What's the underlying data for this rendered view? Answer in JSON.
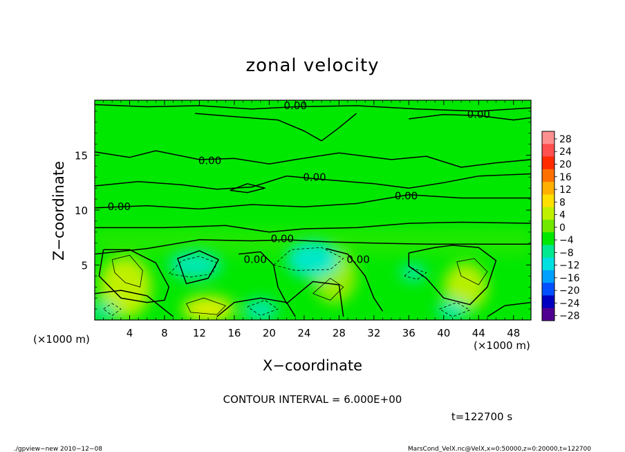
{
  "chart_data": {
    "type": "heatmap",
    "title": "zonal velocity",
    "xlabel": "X−coordinate",
    "ylabel": "Z−coordinate",
    "x_unit": "(×1000 m)",
    "y_unit": "(×1000 m)",
    "xlim": [
      0,
      50
    ],
    "ylim": [
      0,
      20
    ],
    "x_ticks": [
      4,
      8,
      12,
      16,
      20,
      24,
      28,
      32,
      36,
      40,
      44,
      48
    ],
    "x_tick_labels": [
      "4",
      "8",
      "12",
      "16",
      "20",
      "24",
      "28",
      "32",
      "36",
      "40",
      "44",
      "48"
    ],
    "y_ticks": [
      5,
      10,
      15
    ],
    "y_tick_labels": [
      "5",
      "10",
      "15"
    ],
    "contour_interval_label": "CONTOUR INTERVAL = 6.000E+00",
    "time_label": "t=122700 s",
    "contour_labels": [
      {
        "text": "0.00",
        "x": 23,
        "y": 19.5
      },
      {
        "text": "0.00",
        "x": 44,
        "y": 18.7
      },
      {
        "text": "0.00",
        "x": 13.2,
        "y": 14.5
      },
      {
        "text": "0.00",
        "x": 25.2,
        "y": 13.0
      },
      {
        "text": "0.00",
        "x": 35.7,
        "y": 11.3
      },
      {
        "text": "0.00",
        "x": 2.8,
        "y": 10.3
      },
      {
        "text": "0.00",
        "x": 21.5,
        "y": 7.4
      },
      {
        "text": "0.00",
        "x": 18.4,
        "y": 5.5
      },
      {
        "text": "0.00",
        "x": 30.2,
        "y": 5.5
      }
    ],
    "colorbar": {
      "levels": [
        "28",
        "24",
        "20",
        "16",
        "12",
        "8",
        "4",
        "0",
        "−4",
        "−8",
        "−12",
        "−16",
        "−20",
        "−24",
        "−28"
      ],
      "colors": [
        "#ff9090",
        "#ff5050",
        "#ff2a00",
        "#ff7000",
        "#ffb000",
        "#ffe000",
        "#bff000",
        "#70e800",
        "#00e800",
        "#00e890",
        "#00e0e0",
        "#00a0ff",
        "#0050ff",
        "#0000c0",
        "#500090"
      ]
    },
    "regions": [
      {
        "kind": "positive-blob",
        "cx": 3.5,
        "cy": 3.0,
        "rx": 3.0,
        "ry": 2.8,
        "color": "#c0f000"
      },
      {
        "kind": "positive-blob",
        "cx": 13.0,
        "cy": 1.0,
        "rx": 3.0,
        "ry": 1.2,
        "color": "#dcef00"
      },
      {
        "kind": "positive-blob",
        "cx": 42.5,
        "cy": 3.0,
        "rx": 2.5,
        "ry": 2.2,
        "color": "#b8ef00"
      },
      {
        "kind": "positive-blob",
        "cx": 27.5,
        "cy": 4.0,
        "rx": 2.5,
        "ry": 2.5,
        "color": "#99ec00"
      },
      {
        "kind": "negative-blob",
        "cx": 11.5,
        "cy": 5.0,
        "rx": 3.0,
        "ry": 1.3,
        "color": "#00e8b0"
      },
      {
        "kind": "negative-blob",
        "cx": 25.0,
        "cy": 5.5,
        "rx": 3.0,
        "ry": 1.7,
        "color": "#00e8c8"
      },
      {
        "kind": "negative-blob",
        "cx": 19.0,
        "cy": 0.9,
        "rx": 2.0,
        "ry": 1.0,
        "color": "#00e8b0"
      },
      {
        "kind": "negative-blob",
        "cx": 36.5,
        "cy": 4.3,
        "rx": 1.5,
        "ry": 0.8,
        "color": "#00e8a8"
      },
      {
        "kind": "negative-blob",
        "cx": 41.0,
        "cy": 0.9,
        "rx": 1.8,
        "ry": 0.9,
        "color": "#00e8b0"
      },
      {
        "kind": "negative-blob",
        "cx": 1.0,
        "cy": 0.8,
        "rx": 1.5,
        "ry": 0.8,
        "color": "#00e8a8"
      }
    ],
    "zero_contours": [
      [
        [
          0,
          19.6
        ],
        [
          6,
          19.4
        ],
        [
          12,
          19.5
        ],
        [
          18,
          19.2
        ],
        [
          23,
          19.4
        ],
        [
          30,
          19.5
        ],
        [
          37,
          19.2
        ],
        [
          44,
          19.0
        ],
        [
          50,
          19.3
        ]
      ],
      [
        [
          11.5,
          18.8
        ],
        [
          16,
          18.5
        ],
        [
          21,
          18.2
        ],
        [
          24,
          17.2
        ],
        [
          26,
          16.3
        ],
        [
          28,
          17.5
        ],
        [
          30,
          18.8
        ]
      ],
      [
        [
          36,
          18.3
        ],
        [
          40,
          18.7
        ],
        [
          44,
          18.6
        ],
        [
          48,
          18.2
        ],
        [
          50,
          18.4
        ]
      ],
      [
        [
          0,
          15.3
        ],
        [
          4,
          14.8
        ],
        [
          7,
          15.4
        ],
        [
          12,
          14.6
        ],
        [
          16,
          14.7
        ],
        [
          20,
          14.2
        ],
        [
          23,
          14.6
        ],
        [
          28,
          15.2
        ],
        [
          34,
          14.6
        ],
        [
          38,
          14.9
        ],
        [
          42,
          13.9
        ],
        [
          46,
          14.3
        ],
        [
          50,
          14.6
        ]
      ],
      [
        [
          0,
          12.2
        ],
        [
          5,
          12.6
        ],
        [
          10,
          12.3
        ],
        [
          14,
          11.9
        ],
        [
          18,
          12.1
        ],
        [
          22,
          13.1
        ],
        [
          26,
          12.8
        ],
        [
          32,
          12.4
        ],
        [
          36,
          12.0
        ],
        [
          40,
          12.5
        ],
        [
          44,
          13.1
        ],
        [
          50,
          13.3
        ]
      ],
      [
        [
          15.5,
          11.8
        ],
        [
          17.5,
          12.4
        ],
        [
          19.5,
          12.0
        ],
        [
          17.5,
          11.6
        ],
        [
          15.5,
          11.8
        ]
      ],
      [
        [
          0,
          10.2
        ],
        [
          6,
          10.4
        ],
        [
          12,
          10.1
        ],
        [
          18,
          10.5
        ],
        [
          24,
          10.3
        ],
        [
          30,
          10.6
        ],
        [
          36,
          11.4
        ],
        [
          42,
          11.1
        ],
        [
          50,
          11.1
        ]
      ],
      [
        [
          0,
          8.4
        ],
        [
          8,
          8.4
        ],
        [
          15,
          8.6
        ],
        [
          20,
          8.0
        ],
        [
          24,
          8.3
        ],
        [
          30,
          8.4
        ],
        [
          36,
          8.8
        ],
        [
          42,
          8.9
        ],
        [
          50,
          8.8
        ]
      ],
      [
        [
          0,
          6.0
        ],
        [
          6,
          6.5
        ],
        [
          12,
          7.3
        ],
        [
          18,
          7.2
        ],
        [
          22,
          7.3
        ],
        [
          27,
          7.1
        ],
        [
          32,
          7.0
        ],
        [
          38,
          6.9
        ],
        [
          44,
          6.9
        ],
        [
          50,
          6.9
        ]
      ],
      [
        [
          1,
          6.4
        ],
        [
          4,
          6.4
        ],
        [
          7,
          5.2
        ],
        [
          8.5,
          3.0
        ],
        [
          8.0,
          1.8
        ],
        [
          6,
          1.6
        ],
        [
          3,
          2.0
        ],
        [
          0.5,
          4.0
        ],
        [
          1,
          6.4
        ]
      ],
      [
        [
          14.2,
          5.5
        ],
        [
          12,
          6.3
        ],
        [
          9.5,
          5.6
        ],
        [
          10.5,
          3.3
        ],
        [
          13,
          3.8
        ],
        [
          14.2,
          5.5
        ]
      ],
      [
        [
          16.5,
          6.0
        ],
        [
          19,
          6.2
        ],
        [
          20.5,
          5.0
        ],
        [
          21,
          3.0
        ],
        [
          22,
          1.5
        ],
        [
          25,
          3.5
        ],
        [
          28,
          3.2
        ],
        [
          28.5,
          0.3
        ]
      ],
      [
        [
          26.5,
          6.5
        ],
        [
          29,
          6.0
        ],
        [
          31,
          4.0
        ],
        [
          32,
          2.0
        ],
        [
          33,
          0.8
        ]
      ],
      [
        [
          36,
          6.1
        ],
        [
          39,
          6.6
        ],
        [
          41,
          6.8
        ],
        [
          44,
          6.6
        ],
        [
          46,
          5.4
        ],
        [
          45,
          3.0
        ],
        [
          43,
          1.4
        ],
        [
          40,
          2.0
        ],
        [
          38,
          3.8
        ],
        [
          36,
          4.9
        ],
        [
          36,
          6.1
        ]
      ],
      [
        [
          0,
          2.4
        ],
        [
          3,
          2.7
        ],
        [
          6,
          2.2
        ],
        [
          9,
          0.3
        ]
      ],
      [
        [
          14,
          0.3
        ],
        [
          16,
          1.6
        ],
        [
          19,
          2.0
        ],
        [
          22,
          1.6
        ],
        [
          23,
          0.3
        ]
      ],
      [
        [
          45,
          0.3
        ],
        [
          47,
          1.3
        ],
        [
          50,
          1.6
        ]
      ]
    ],
    "dashed_contours": [
      [
        [
          8.5,
          4.2
        ],
        [
          10,
          5.4
        ],
        [
          12,
          5.8
        ],
        [
          14,
          5.2
        ],
        [
          13.5,
          4.2
        ],
        [
          11,
          3.9
        ],
        [
          8.5,
          4.2
        ]
      ],
      [
        [
          20.5,
          5.0
        ],
        [
          22.5,
          6.4
        ],
        [
          26,
          6.6
        ],
        [
          28.5,
          5.6
        ],
        [
          27,
          4.6
        ],
        [
          23,
          4.5
        ],
        [
          20.5,
          5.0
        ]
      ],
      [
        [
          35.5,
          4.0
        ],
        [
          36.5,
          4.7
        ],
        [
          38,
          4.3
        ],
        [
          37,
          3.7
        ],
        [
          35.5,
          4.0
        ]
      ],
      [
        [
          1,
          1.0
        ],
        [
          2,
          1.5
        ],
        [
          3,
          1.0
        ],
        [
          2,
          0.4
        ],
        [
          1,
          1.0
        ]
      ],
      [
        [
          17.5,
          1.2
        ],
        [
          19.5,
          1.8
        ],
        [
          21,
          1.0
        ],
        [
          19,
          0.4
        ],
        [
          17.5,
          1.2
        ]
      ],
      [
        [
          39.5,
          1.0
        ],
        [
          41.5,
          1.6
        ],
        [
          43,
          0.9
        ],
        [
          41,
          0.3
        ],
        [
          39.5,
          1.0
        ]
      ]
    ],
    "positive_contours": [
      [
        [
          2,
          5.5
        ],
        [
          4,
          5.9
        ],
        [
          5.5,
          4.5
        ],
        [
          5.2,
          3.0
        ],
        [
          3.5,
          3.4
        ],
        [
          2.3,
          4.3
        ],
        [
          2,
          5.5
        ]
      ],
      [
        [
          10.5,
          1.5
        ],
        [
          12.5,
          2.0
        ],
        [
          15,
          1.3
        ],
        [
          14,
          0.5
        ],
        [
          11,
          0.7
        ],
        [
          10.5,
          1.5
        ]
      ],
      [
        [
          41.5,
          5.3
        ],
        [
          43.5,
          5.6
        ],
        [
          45,
          4.4
        ],
        [
          44,
          3.2
        ],
        [
          42,
          4.0
        ],
        [
          41.5,
          5.3
        ]
      ],
      [
        [
          25,
          2.4
        ],
        [
          27,
          3.8
        ],
        [
          28.5,
          3.0
        ],
        [
          27,
          1.8
        ],
        [
          25,
          2.4
        ]
      ]
    ]
  },
  "footer": {
    "left": "./gpview−new  2010−12−08",
    "right": "MarsCond_VelX.nc@VelX,x=0:50000,z=0:20000,t=122700"
  }
}
